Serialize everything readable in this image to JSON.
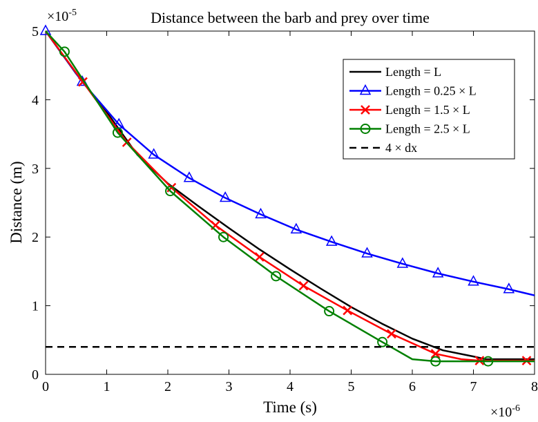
{
  "chart_data": {
    "type": "line",
    "title": "Distance between the barb and prey over time",
    "xlabel": "Time (s)",
    "ylabel": "Distance (m)",
    "x_multiplier": "×10",
    "x_exponent": "-6",
    "y_multiplier": "×10",
    "y_exponent": "-5",
    "xlim": [
      0,
      8
    ],
    "ylim": [
      0,
      5
    ],
    "x_ticks": [
      0,
      1,
      2,
      3,
      4,
      5,
      6,
      7,
      8
    ],
    "y_ticks": [
      0,
      1,
      2,
      3,
      4,
      5
    ],
    "x_tick_labels": [
      "0",
      "1",
      "2",
      "3",
      "4",
      "5",
      "6",
      "7",
      "8"
    ],
    "y_tick_labels": [
      "0",
      "1",
      "2",
      "3",
      "4",
      "5"
    ],
    "grid": false,
    "legend_position": "top-right",
    "series": [
      {
        "name": "Length = L",
        "color": "#000000",
        "dash": "solid",
        "marker": "none",
        "x": [
          0,
          0.5,
          1,
          1.5,
          2,
          2.5,
          3,
          3.5,
          4,
          4.5,
          5,
          5.5,
          6,
          6.5,
          7,
          7.2,
          7.5,
          8
        ],
        "y": [
          5.0,
          4.38,
          3.82,
          3.2,
          2.78,
          2.45,
          2.13,
          1.82,
          1.53,
          1.25,
          0.98,
          0.74,
          0.52,
          0.35,
          0.26,
          0.22,
          0.22,
          0.22
        ]
      },
      {
        "name": "Length = 0.25 × L",
        "color": "#0000ff",
        "dash": "solid",
        "marker": "triangle",
        "x": [
          0,
          0.6,
          1.2,
          1.77,
          2.35,
          2.94,
          3.52,
          4.1,
          4.68,
          5.26,
          5.84,
          6.42,
          7.0,
          7.58,
          8
        ],
        "y": [
          5.0,
          4.26,
          3.64,
          3.2,
          2.86,
          2.57,
          2.33,
          2.11,
          1.93,
          1.76,
          1.61,
          1.47,
          1.35,
          1.24,
          1.15
        ],
        "marker_x": [
          0,
          0.6,
          1.2,
          1.77,
          2.35,
          2.94,
          3.52,
          4.1,
          4.68,
          5.26,
          5.84,
          6.42,
          7.0,
          7.58
        ],
        "marker_y": [
          5.0,
          4.26,
          3.64,
          3.2,
          2.86,
          2.57,
          2.33,
          2.11,
          1.93,
          1.76,
          1.61,
          1.47,
          1.35,
          1.24
        ]
      },
      {
        "name": "Length = 1.5 × L",
        "color": "#ff0000",
        "dash": "solid",
        "marker": "x",
        "x": [
          0,
          0.61,
          1.33,
          2.06,
          2.78,
          3.5,
          4.22,
          4.94,
          5.66,
          6.38,
          6.8,
          7.1,
          7.5,
          7.87,
          8
        ],
        "y": [
          5.0,
          4.26,
          3.38,
          2.72,
          2.17,
          1.71,
          1.29,
          0.93,
          0.59,
          0.3,
          0.22,
          0.2,
          0.2,
          0.2,
          0.2
        ],
        "marker_x": [
          0.61,
          1.33,
          2.06,
          2.78,
          3.5,
          4.22,
          4.94,
          5.66,
          6.38,
          7.1,
          7.87
        ],
        "marker_y": [
          4.26,
          3.38,
          2.72,
          2.17,
          1.71,
          1.29,
          0.93,
          0.59,
          0.3,
          0.2,
          0.2
        ]
      },
      {
        "name": "Length = 2.5 × L",
        "color": "#008000",
        "dash": "solid",
        "marker": "circle",
        "x": [
          0,
          0.31,
          1.18,
          2.04,
          2.91,
          3.77,
          4.64,
          5.51,
          6.0,
          6.38,
          7.24,
          8
        ],
        "y": [
          5.0,
          4.7,
          3.52,
          2.67,
          2.0,
          1.43,
          0.92,
          0.47,
          0.22,
          0.19,
          0.19,
          0.19
        ],
        "marker_x": [
          0.31,
          1.18,
          2.04,
          2.91,
          3.77,
          4.64,
          5.51,
          6.38,
          7.24
        ],
        "marker_y": [
          4.7,
          3.52,
          2.67,
          2.0,
          1.43,
          0.92,
          0.47,
          0.19,
          0.19
        ]
      },
      {
        "name": "4 × dx",
        "color": "#000000",
        "dash": "dashed",
        "marker": "none",
        "x": [
          0,
          8
        ],
        "y": [
          0.4,
          0.4
        ]
      }
    ]
  }
}
